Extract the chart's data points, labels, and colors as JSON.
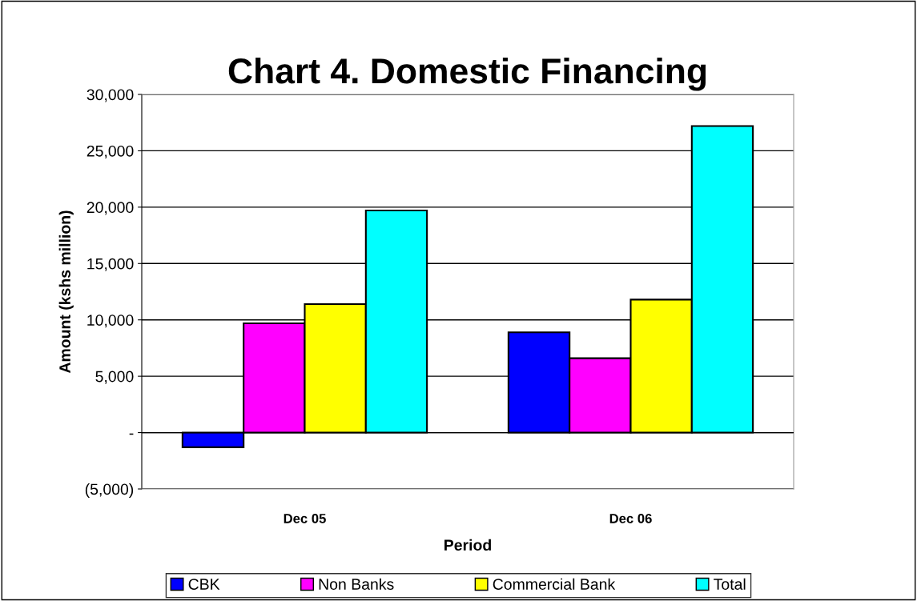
{
  "chart_data": {
    "type": "bar",
    "title": "Chart 4. Domestic Financing",
    "xlabel": "Period",
    "ylabel": "Amount (kshs million)",
    "categories": [
      "Dec 05",
      "Dec 06"
    ],
    "series": [
      {
        "name": "CBK",
        "color": "#0000ff",
        "values": [
          -1300,
          8900
        ]
      },
      {
        "name": "Non Banks",
        "color": "#ff00ff",
        "values": [
          9700,
          6600
        ]
      },
      {
        "name": "Commercial Bank",
        "color": "#ffff00",
        "values": [
          11400,
          11800
        ]
      },
      {
        "name": "Total",
        "color": "#00ffff",
        "values": [
          19700,
          27200
        ]
      }
    ],
    "ylim": [
      -5000,
      30000
    ],
    "yticks": [
      {
        "value": -5000,
        "label": "(5,000)"
      },
      {
        "value": 0,
        "label": "-"
      },
      {
        "value": 5000,
        "label": "5,000"
      },
      {
        "value": 10000,
        "label": "10,000"
      },
      {
        "value": 15000,
        "label": "15,000"
      },
      {
        "value": 20000,
        "label": "20,000"
      },
      {
        "value": 25000,
        "label": "25,000"
      },
      {
        "value": 30000,
        "label": "30,000"
      }
    ],
    "grid": "y",
    "legend": "bottom"
  }
}
